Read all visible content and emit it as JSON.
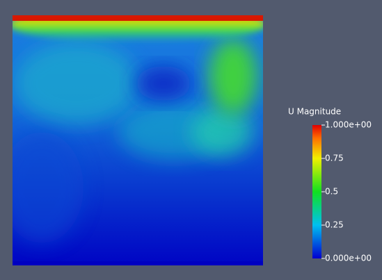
{
  "colorbar": {
    "title": "U Magnitude",
    "range": [
      0,
      1
    ],
    "ticks": [
      {
        "value": 1,
        "label": "1.000e+00"
      },
      0.75,
      0.5,
      0.25,
      {
        "value": 0,
        "label": "0.000e+00"
      }
    ]
  }
}
